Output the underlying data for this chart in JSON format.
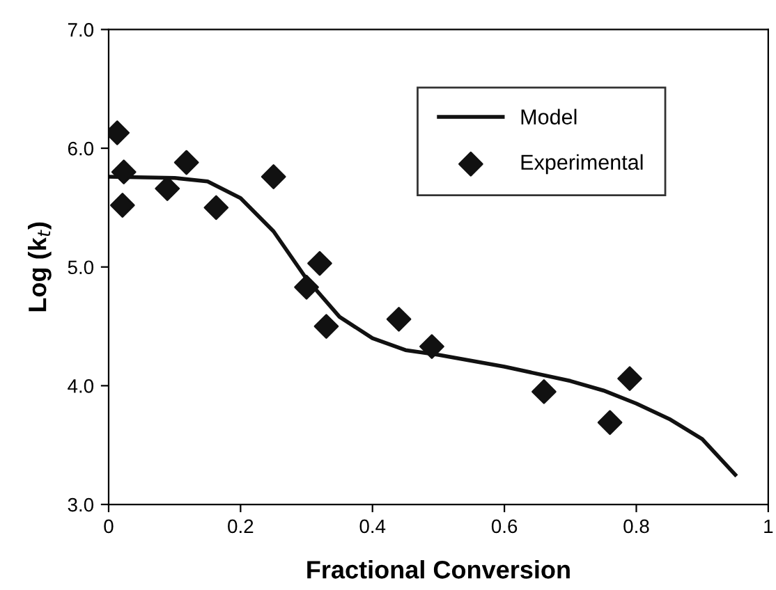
{
  "chart_data": {
    "type": "scatter",
    "xlabel": "Fractional Conversion",
    "ylabel": "Log (k$_{t}$)",
    "xlim": [
      0,
      1
    ],
    "ylim": [
      3,
      7
    ],
    "xticks": [
      0,
      0.2,
      0.4,
      0.6,
      0.8,
      1
    ],
    "yticks": [
      {
        "value": 3,
        "label": "3.0"
      },
      {
        "value": 4,
        "label": "4.0"
      },
      {
        "value": 5,
        "label": "5.0"
      },
      {
        "value": 6,
        "label": "6.0"
      },
      {
        "value": 7,
        "label": "7.0"
      }
    ],
    "grid": false,
    "legend": "top right",
    "series": [
      {
        "name": "Model",
        "type": "line",
        "color": "#111111",
        "marker": "none",
        "line_style": "solid",
        "x": [
          0,
          0.1,
          0.15,
          0.2,
          0.25,
          0.3,
          0.35,
          0.4,
          0.45,
          0.5,
          0.6,
          0.7,
          0.75,
          0.8,
          0.85,
          0.9,
          0.95
        ],
        "values": [
          5.76,
          5.75,
          5.72,
          5.58,
          5.3,
          4.9,
          4.58,
          4.4,
          4.3,
          4.26,
          4.16,
          4.04,
          3.96,
          3.85,
          3.72,
          3.55,
          3.25
        ]
      },
      {
        "name": "Experimental",
        "color": "#111111",
        "marker": "diamond",
        "x": [
          0.013,
          0.023,
          0.021,
          0.089,
          0.118,
          0.163,
          0.25,
          0.3,
          0.32,
          0.33,
          0.44,
          0.49,
          0.66,
          0.76,
          0.79
        ],
        "values": [
          6.13,
          5.8,
          5.52,
          5.66,
          5.88,
          5.5,
          5.76,
          4.83,
          5.03,
          4.5,
          4.56,
          4.33,
          3.95,
          3.69,
          4.06
        ]
      }
    ]
  }
}
